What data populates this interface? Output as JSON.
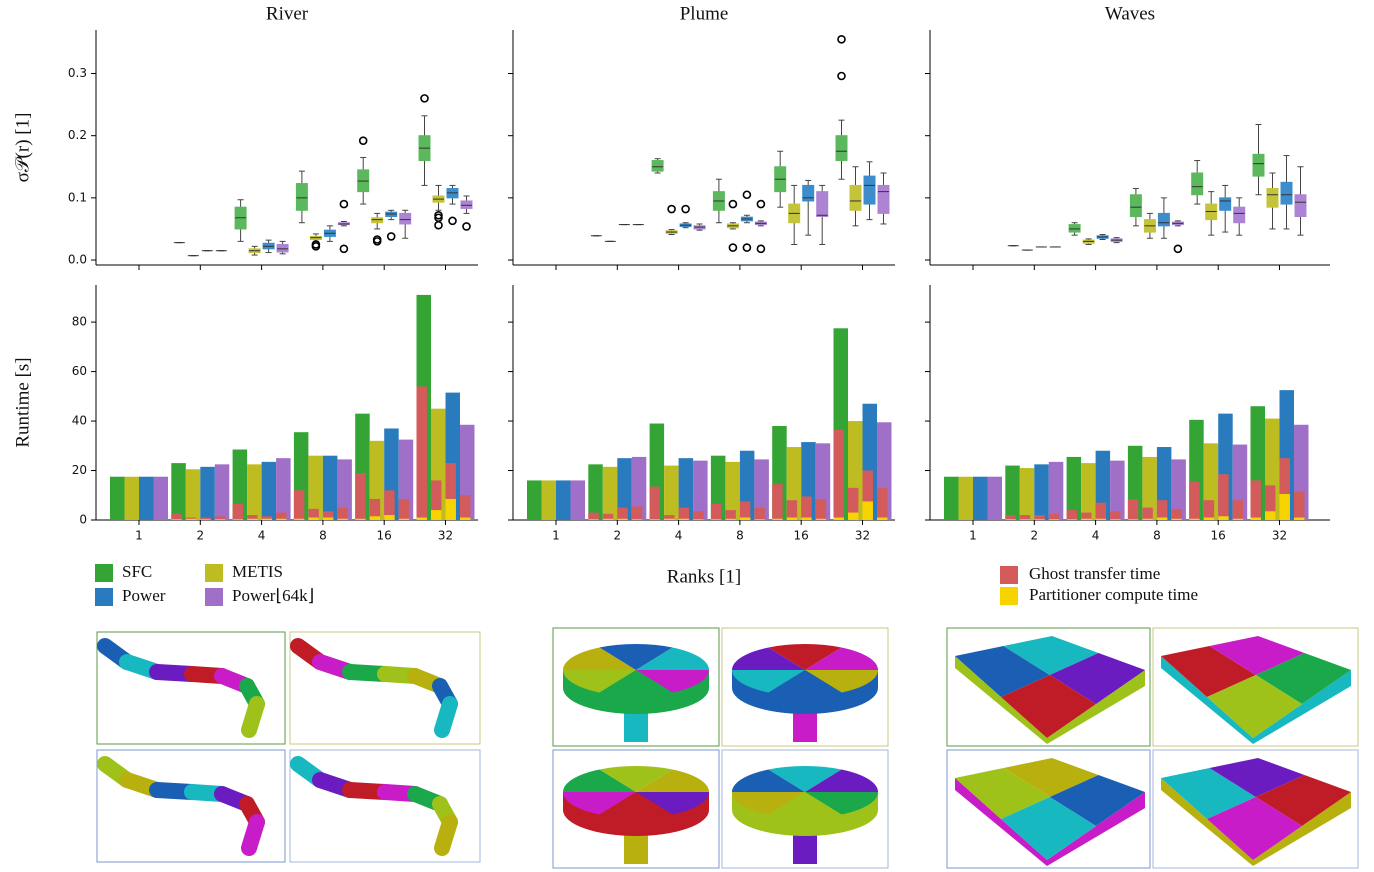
{
  "chart_data": [
    {
      "type": "box",
      "title": "River",
      "ylabel": "σ𝒫(r) [1]",
      "ylim": [
        -0.008,
        0.37
      ],
      "yticks": [
        {
          "value": 0,
          "label": "0.0"
        },
        0.1,
        0.2,
        0.3
      ],
      "series": [
        {
          "color": "#5cb85c",
          "min": [
            null,
            0.028,
            0.03,
            0.06,
            0.09,
            0.12
          ],
          "q1": [
            null,
            0.028,
            0.05,
            0.08,
            0.11,
            0.16
          ],
          "median": [
            null,
            0.028,
            0.068,
            0.1,
            0.127,
            0.18
          ],
          "q3": [
            null,
            0.028,
            0.085,
            0.123,
            0.145,
            0.2
          ],
          "max": [
            null,
            0.028,
            0.097,
            0.143,
            0.165,
            0.232
          ],
          "outliers": [
            null,
            [],
            [],
            [],
            [
              0.192
            ],
            [
              0.26
            ]
          ]
        },
        {
          "color": "#c4c43a",
          "min": [
            null,
            0.007,
            0.008,
            0.03,
            0.05,
            0.08
          ],
          "q1": [
            null,
            0.007,
            0.012,
            0.033,
            0.06,
            0.093
          ],
          "median": [
            null,
            0.007,
            0.015,
            0.036,
            0.065,
            0.098
          ],
          "q3": [
            null,
            0.007,
            0.018,
            0.038,
            0.068,
            0.103
          ],
          "max": [
            null,
            0.007,
            0.022,
            0.042,
            0.075,
            0.12
          ],
          "outliers": [
            null,
            [],
            [],
            [
              0.022,
              0.025
            ],
            [
              0.03,
              0.033
            ],
            [
              0.056,
              0.068,
              0.072
            ]
          ]
        },
        {
          "color": "#3d8ccc",
          "min": [
            null,
            0.015,
            0.012,
            0.03,
            0.065,
            0.09
          ],
          "q1": [
            null,
            0.015,
            0.018,
            0.038,
            0.07,
            0.1
          ],
          "median": [
            null,
            0.015,
            0.022,
            0.043,
            0.074,
            0.108
          ],
          "q3": [
            null,
            0.015,
            0.027,
            0.048,
            0.077,
            0.115
          ],
          "max": [
            null,
            0.015,
            0.032,
            0.055,
            0.08,
            0.12
          ],
          "outliers": [
            null,
            [],
            [],
            [],
            [
              0.038
            ],
            [
              0.063
            ]
          ]
        },
        {
          "color": "#ad84d4",
          "min": [
            null,
            0.015,
            0.01,
            0.055,
            0.035,
            0.075
          ],
          "q1": [
            null,
            0.015,
            0.013,
            0.057,
            0.058,
            0.083
          ],
          "median": [
            null,
            0.015,
            0.018,
            0.058,
            0.065,
            0.088
          ],
          "q3": [
            null,
            0.015,
            0.025,
            0.06,
            0.075,
            0.095
          ],
          "max": [
            null,
            0.015,
            0.03,
            0.062,
            0.08,
            0.103
          ],
          "outliers": [
            null,
            [],
            [],
            [
              0.018,
              0.09
            ],
            [],
            [
              0.054
            ]
          ]
        }
      ]
    },
    {
      "type": "box",
      "title": "Plume",
      "ylim": [
        -0.008,
        0.37
      ],
      "yticks": [
        0,
        0.1,
        0.2,
        0.3
      ],
      "ytick_labels": false,
      "series": [
        {
          "color": "#5cb85c",
          "min": [
            null,
            0.039,
            0.14,
            0.06,
            0.085,
            0.13
          ],
          "q1": [
            null,
            0.039,
            0.143,
            0.08,
            0.11,
            0.16
          ],
          "median": [
            null,
            0.039,
            0.15,
            0.095,
            0.13,
            0.175
          ],
          "q3": [
            null,
            0.039,
            0.16,
            0.11,
            0.15,
            0.2
          ],
          "max": [
            null,
            0.039,
            0.163,
            0.13,
            0.175,
            0.225
          ],
          "outliers": [
            null,
            [],
            [],
            [],
            [],
            [
              0.296,
              0.355
            ]
          ]
        },
        {
          "color": "#c4c43a",
          "min": [
            null,
            0.03,
            0.041,
            0.05,
            0.025,
            0.055
          ],
          "q1": [
            null,
            0.03,
            0.043,
            0.052,
            0.06,
            0.08
          ],
          "median": [
            null,
            0.03,
            0.045,
            0.055,
            0.075,
            0.095
          ],
          "q3": [
            null,
            0.03,
            0.047,
            0.058,
            0.09,
            0.12
          ],
          "max": [
            null,
            0.03,
            0.049,
            0.06,
            0.12,
            0.15
          ],
          "outliers": [
            null,
            [],
            [
              0.082
            ],
            [
              0.02,
              0.09
            ],
            [],
            []
          ]
        },
        {
          "color": "#3d8ccc",
          "min": [
            null,
            0.057,
            0.052,
            0.06,
            0.04,
            0.065
          ],
          "q1": [
            null,
            0.057,
            0.054,
            0.063,
            0.095,
            0.09
          ],
          "median": [
            null,
            0.057,
            0.056,
            0.066,
            0.1,
            0.12
          ],
          "q3": [
            null,
            0.057,
            0.058,
            0.069,
            0.12,
            0.135
          ],
          "max": [
            null,
            0.057,
            0.06,
            0.072,
            0.128,
            0.158
          ],
          "outliers": [
            null,
            [],
            [
              0.082
            ],
            [
              0.02,
              0.105
            ],
            [],
            []
          ]
        },
        {
          "color": "#ad84d4",
          "min": [
            null,
            0.057,
            0.048,
            0.055,
            0.025,
            0.058
          ],
          "q1": [
            null,
            0.057,
            0.05,
            0.057,
            0.07,
            0.075
          ],
          "median": [
            null,
            0.057,
            0.053,
            0.059,
            0.072,
            0.11
          ],
          "q3": [
            null,
            0.057,
            0.055,
            0.061,
            0.11,
            0.12
          ],
          "max": [
            null,
            0.057,
            0.058,
            0.063,
            0.12,
            0.14
          ],
          "outliers": [
            null,
            [],
            [],
            [
              0.018,
              0.09
            ],
            [],
            []
          ]
        }
      ]
    },
    {
      "type": "box",
      "title": "Waves",
      "ylim": [
        -0.008,
        0.37
      ],
      "yticks": [
        0,
        0.1,
        0.2,
        0.3
      ],
      "ytick_labels": false,
      "series": [
        {
          "color": "#5cb85c",
          "min": [
            null,
            0.023,
            0.04,
            0.055,
            0.09,
            0.105
          ],
          "q1": [
            null,
            0.023,
            0.045,
            0.07,
            0.105,
            0.135
          ],
          "median": [
            null,
            0.023,
            0.05,
            0.085,
            0.118,
            0.155
          ],
          "q3": [
            null,
            0.023,
            0.057,
            0.105,
            0.14,
            0.17
          ],
          "max": [
            null,
            0.023,
            0.06,
            0.115,
            0.16,
            0.218
          ],
          "outliers": [
            null,
            [],
            [],
            [],
            [],
            []
          ]
        },
        {
          "color": "#c4c43a",
          "min": [
            null,
            0.016,
            0.025,
            0.035,
            0.04,
            0.05
          ],
          "q1": [
            null,
            0.016,
            0.027,
            0.045,
            0.065,
            0.085
          ],
          "median": [
            null,
            0.016,
            0.03,
            0.055,
            0.078,
            0.105
          ],
          "q3": [
            null,
            0.016,
            0.032,
            0.065,
            0.09,
            0.115
          ],
          "max": [
            null,
            0.016,
            0.034,
            0.075,
            0.11,
            0.14
          ],
          "outliers": [
            null,
            [],
            [],
            [],
            [],
            []
          ]
        },
        {
          "color": "#3d8ccc",
          "min": [
            null,
            0.021,
            0.033,
            0.035,
            0.045,
            0.05
          ],
          "q1": [
            null,
            0.021,
            0.035,
            0.055,
            0.08,
            0.09
          ],
          "median": [
            null,
            0.021,
            0.037,
            0.06,
            0.095,
            0.105
          ],
          "q3": [
            null,
            0.021,
            0.039,
            0.075,
            0.1,
            0.125
          ],
          "max": [
            null,
            0.021,
            0.041,
            0.1,
            0.12,
            0.168
          ],
          "outliers": [
            null,
            [],
            [],
            [],
            [],
            []
          ]
        },
        {
          "color": "#ad84d4",
          "min": [
            null,
            0.021,
            0.028,
            0.055,
            0.04,
            0.04
          ],
          "q1": [
            null,
            0.021,
            0.03,
            0.057,
            0.06,
            0.07
          ],
          "median": [
            null,
            0.021,
            0.032,
            0.059,
            0.075,
            0.093
          ],
          "q3": [
            null,
            0.021,
            0.034,
            0.061,
            0.085,
            0.105
          ],
          "max": [
            null,
            0.021,
            0.036,
            0.063,
            0.1,
            0.15
          ],
          "outliers": [
            null,
            [],
            [],
            [
              0.018
            ],
            [],
            []
          ]
        }
      ]
    },
    {
      "type": "bar",
      "ylabel": "Runtime [s]",
      "ylim": [
        0,
        95
      ],
      "yticks": [
        0,
        20,
        40,
        60,
        80
      ],
      "categories": [
        "1",
        "2",
        "4",
        "8",
        "16",
        "32"
      ],
      "series": [
        {
          "name": "SFC",
          "color": "#34a534",
          "values": [
            17.5,
            23,
            28.5,
            35.5,
            43,
            91
          ],
          "ghost": [
            0,
            2.5,
            6.5,
            12,
            19,
            54
          ],
          "partitioner": [
            0,
            0.3,
            0.3,
            0.5,
            0.5,
            1
          ]
        },
        {
          "name": "METIS",
          "color": "#bdbd22",
          "values": [
            17.5,
            20.5,
            22.5,
            26,
            32,
            45
          ],
          "ghost": [
            0,
            1,
            2,
            4.5,
            8.5,
            16
          ],
          "partitioner": [
            0,
            0.5,
            0.5,
            1,
            1.5,
            4
          ]
        },
        {
          "name": "Power",
          "color": "#2a7bbd",
          "values": [
            17.5,
            21.5,
            23.5,
            26,
            37,
            51.5
          ],
          "ghost": [
            0,
            1,
            1.5,
            3.5,
            12,
            23
          ],
          "partitioner": [
            0,
            0.3,
            0.5,
            1,
            2,
            8.5
          ]
        },
        {
          "name": "Power⌊64k⌋",
          "color": "#a070c8",
          "values": [
            17.5,
            22.5,
            25,
            24.5,
            32.5,
            38.5
          ],
          "ghost": [
            0,
            1.5,
            3,
            5,
            8.5,
            10
          ],
          "partitioner": [
            0,
            0.3,
            0.5,
            0.5,
            0.5,
            1
          ]
        }
      ],
      "overlays": {
        "ghost": {
          "name": "Ghost transfer time",
          "color": "#d45b5b"
        },
        "partitioner": {
          "name": "Partitioner compute time",
          "color": "#f7d400"
        }
      }
    },
    {
      "type": "bar",
      "xlabel": "Ranks [1]",
      "ylim": [
        0,
        95
      ],
      "yticks": [
        0,
        20,
        40,
        60,
        80
      ],
      "ytick_labels": false,
      "categories": [
        "1",
        "2",
        "4",
        "8",
        "16",
        "32"
      ],
      "series": [
        {
          "color": "#34a534",
          "values": [
            16,
            22.5,
            39,
            26,
            38,
            77.5
          ],
          "ghost": [
            0,
            3,
            13.5,
            6.5,
            14.5,
            36.5
          ],
          "partitioner": [
            0,
            0.3,
            0.3,
            0.3,
            0.5,
            1
          ]
        },
        {
          "color": "#bdbd22",
          "values": [
            16,
            21.5,
            22,
            23.5,
            29.5,
            40
          ],
          "ghost": [
            0,
            2.5,
            2,
            4,
            8,
            13
          ],
          "partitioner": [
            0,
            0.5,
            0.5,
            0.5,
            1,
            3
          ]
        },
        {
          "color": "#2a7bbd",
          "values": [
            16,
            25,
            25,
            28,
            31.5,
            47
          ],
          "ghost": [
            0,
            5,
            5,
            7.5,
            9.5,
            20
          ],
          "partitioner": [
            0,
            0.5,
            0.5,
            1,
            1,
            7.5
          ]
        },
        {
          "color": "#a070c8",
          "values": [
            16,
            25.5,
            24,
            24.5,
            31,
            39.5
          ],
          "ghost": [
            0,
            5.5,
            3.5,
            5,
            8.5,
            13
          ],
          "partitioner": [
            0,
            0.3,
            0.3,
            0.3,
            0.5,
            1
          ]
        }
      ]
    },
    {
      "type": "bar",
      "ylim": [
        0,
        95
      ],
      "yticks": [
        0,
        20,
        40,
        60,
        80
      ],
      "ytick_labels": false,
      "categories": [
        "1",
        "2",
        "4",
        "8",
        "16",
        "32"
      ],
      "series": [
        {
          "color": "#34a534",
          "values": [
            17.5,
            22,
            25.5,
            30,
            40.5,
            46
          ],
          "ghost": [
            0,
            2,
            4,
            8.5,
            15.5,
            16
          ],
          "partitioner": [
            0,
            0.3,
            0.3,
            0.3,
            0.5,
            1
          ]
        },
        {
          "color": "#bdbd22",
          "values": [
            17.5,
            21,
            23,
            25.5,
            31,
            41
          ],
          "ghost": [
            0,
            2,
            3,
            5,
            8,
            14
          ],
          "partitioner": [
            0,
            0.3,
            0.5,
            0.5,
            1,
            3.5
          ]
        },
        {
          "color": "#2a7bbd",
          "values": [
            17.5,
            22.5,
            28,
            29.5,
            43,
            52.5
          ],
          "ghost": [
            0,
            2,
            7,
            8,
            18.5,
            25
          ],
          "partitioner": [
            0,
            0.3,
            0.5,
            1,
            1.5,
            10.5
          ]
        },
        {
          "color": "#a070c8",
          "values": [
            17.5,
            23.5,
            24,
            24.5,
            30.5,
            38.5
          ],
          "ghost": [
            0,
            2.5,
            3.5,
            4.5,
            8,
            11.5
          ],
          "partitioner": [
            0,
            0.3,
            0.3,
            0.5,
            0.5,
            1
          ]
        }
      ]
    }
  ]
}
